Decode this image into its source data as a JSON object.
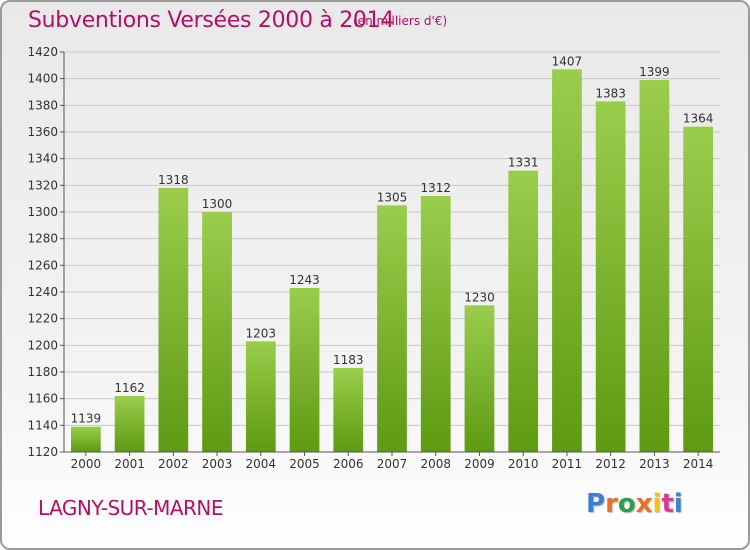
{
  "header": {
    "title": "Subventions Versées 2000 à 2014",
    "subtitle": "(en milliers d'€)"
  },
  "footer": {
    "commune": "LAGNY-SUR-MARNE",
    "logo": "Proxiti"
  },
  "colors": {
    "title": "#b30f66",
    "bar_top": "#9acd4c",
    "bar_bottom": "#5e9a12",
    "grid": "#c8c8c8",
    "logo_letters": [
      "#3e7fd6",
      "#e8702a",
      "#2e9e4f",
      "#e8702a",
      "#f0c419",
      "#d63c8c",
      "#3e7fd6"
    ]
  },
  "chart_data": {
    "type": "bar",
    "title": "Subventions Versées 2000 à 2014",
    "subtitle": "(en milliers d'€)",
    "xlabel": "",
    "ylabel": "",
    "categories": [
      "2000",
      "2001",
      "2002",
      "2003",
      "2004",
      "2005",
      "2006",
      "2007",
      "2008",
      "2009",
      "2010",
      "2011",
      "2012",
      "2013",
      "2014"
    ],
    "values": [
      1139,
      1162,
      1318,
      1300,
      1203,
      1243,
      1183,
      1305,
      1312,
      1230,
      1331,
      1407,
      1383,
      1399,
      1364
    ],
    "ylim": [
      1120,
      1420
    ],
    "yticks": [
      1120,
      1140,
      1160,
      1180,
      1200,
      1220,
      1240,
      1260,
      1280,
      1300,
      1320,
      1340,
      1360,
      1380,
      1400,
      1420
    ],
    "grid": true,
    "data_labels": true,
    "legend": "none"
  }
}
